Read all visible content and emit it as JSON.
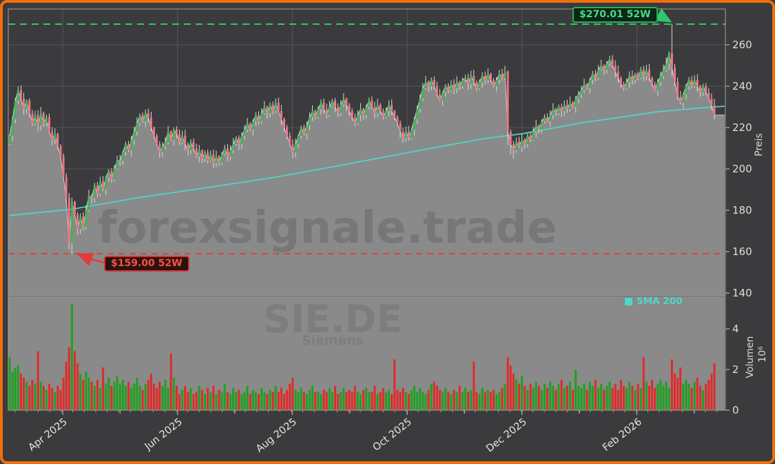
{
  "watermark": {
    "site": "forexsignale.trade",
    "symbol": "SIE.DE",
    "company": "Siemens"
  },
  "legend": {
    "sma_label": "SMA 200"
  },
  "annotations": {
    "high": {
      "label": "$270.01 52W",
      "value": 270.01
    },
    "low": {
      "label": "$159.00 52W",
      "value": 159.0
    }
  },
  "axes": {
    "price": {
      "label": "Preis",
      "ticks": [
        260,
        240,
        220,
        200,
        180,
        160,
        140
      ]
    },
    "volume": {
      "label": "Volumen",
      "unit": "10⁶",
      "ticks": [
        4,
        2,
        0
      ]
    },
    "x": {
      "tick_labels": [
        "Apr 2025",
        "Jun 2025",
        "Aug 2025",
        "Oct 2025",
        "Dec 2025",
        "Feb 2026"
      ]
    }
  },
  "chart_data": {
    "type": "candlestick",
    "symbol": "SIE.DE",
    "title_watermark": "forexsignale.trade",
    "price_ylim": [
      139,
      277.3
    ],
    "volume_ylim_millions": [
      0,
      5.6
    ],
    "high_52w": 270.01,
    "low_52w": 159.0,
    "first_open": 212,
    "closes": [
      216,
      224,
      233,
      238,
      234,
      229,
      233,
      227,
      222,
      226,
      221,
      227,
      222,
      225,
      218,
      214,
      217,
      211,
      206,
      196,
      186,
      164,
      184,
      178,
      171,
      177,
      172,
      180,
      187,
      186,
      192,
      188,
      194,
      190,
      196,
      199,
      195,
      200,
      204,
      204,
      208,
      212,
      209,
      214,
      218,
      222,
      226,
      223,
      227,
      225,
      220,
      216,
      212,
      208,
      211,
      213,
      218,
      214,
      219,
      217,
      213,
      216,
      212,
      209,
      213,
      210,
      206,
      209,
      205,
      208,
      204,
      207,
      203,
      206,
      203,
      207,
      210,
      206,
      209,
      212,
      215,
      212,
      216,
      219,
      222,
      219,
      223,
      226,
      223,
      227,
      230,
      227,
      231,
      228,
      232,
      228,
      224,
      220,
      216,
      212,
      208,
      212,
      216,
      220,
      217,
      221,
      225,
      228,
      225,
      229,
      232,
      229,
      226,
      230,
      233,
      230,
      227,
      231,
      234,
      231,
      228,
      225,
      222,
      226,
      229,
      226,
      230,
      233,
      230,
      227,
      231,
      228,
      225,
      228,
      231,
      228,
      225,
      222,
      218,
      215,
      218,
      215,
      219,
      224,
      229,
      234,
      239,
      242,
      240,
      243,
      240,
      236,
      233,
      237,
      240,
      238,
      241,
      239,
      242,
      240,
      243,
      244,
      241,
      245,
      242,
      239,
      242,
      245,
      243,
      246,
      243,
      240,
      243,
      246,
      244,
      247,
      218,
      212,
      209,
      213,
      211,
      214,
      212,
      216,
      214,
      218,
      221,
      219,
      223,
      225,
      223,
      226,
      229,
      227,
      230,
      228,
      231,
      229,
      232,
      230,
      234,
      236,
      238,
      241,
      239,
      243,
      246,
      244,
      248,
      250,
      248,
      251,
      253,
      250,
      247,
      244,
      241,
      239,
      242,
      245,
      243,
      246,
      244,
      248,
      245,
      248,
      244,
      241,
      238,
      242,
      245,
      248,
      251,
      256,
      249,
      242,
      235,
      232,
      236,
      240,
      243,
      240,
      243,
      240,
      237,
      240,
      237,
      234,
      231,
      226
    ],
    "volumes_millions": [
      2.6,
      1.9,
      2.1,
      2.2,
      1.8,
      1.6,
      1.4,
      1.2,
      1.5,
      1.3,
      2.9,
      1.4,
      1.2,
      1.0,
      1.3,
      1.1,
      0.9,
      1.2,
      1.0,
      1.6,
      2.4,
      3.1,
      5.2,
      2.9,
      2.3,
      1.8,
      1.5,
      1.9,
      1.6,
      1.4,
      1.2,
      1.5,
      1.1,
      2.1,
      1.3,
      1.6,
      1.2,
      1.4,
      1.7,
      1.3,
      1.5,
      1.2,
      1.4,
      1.1,
      1.3,
      1.6,
      1.2,
      1.0,
      1.3,
      1.5,
      1.8,
      1.3,
      1.1,
      1.4,
      1.2,
      1.5,
      1.1,
      2.8,
      1.6,
      1.2,
      0.8,
      1.0,
      1.2,
      0.9,
      1.1,
      0.8,
      0.9,
      1.2,
      1.0,
      0.8,
      1.1,
      0.9,
      1.2,
      0.8,
      1.0,
      0.9,
      1.3,
      0.9,
      0.8,
      1.1,
      0.9,
      1.0,
      0.8,
      0.9,
      1.2,
      0.8,
      1.0,
      0.9,
      0.8,
      1.1,
      0.9,
      0.8,
      1.0,
      0.9,
      1.2,
      0.9,
      1.1,
      0.8,
      1.0,
      1.3,
      1.6,
      1.0,
      0.9,
      1.1,
      0.9,
      0.8,
      1.0,
      1.2,
      0.9,
      0.9,
      0.8,
      1.0,
      0.9,
      1.1,
      0.9,
      1.2,
      0.8,
      0.9,
      1.1,
      0.9,
      1.0,
      0.9,
      1.2,
      0.9,
      0.8,
      1.0,
      1.1,
      0.9,
      0.9,
      1.2,
      0.8,
      0.9,
      1.1,
      0.9,
      1.0,
      0.8,
      2.5,
      1.0,
      0.9,
      1.1,
      0.9,
      0.8,
      1.0,
      1.2,
      0.9,
      1.1,
      0.9,
      0.8,
      1.0,
      1.3,
      1.4,
      1.2,
      1.0,
      0.9,
      1.1,
      0.9,
      0.8,
      1.0,
      0.9,
      1.2,
      0.9,
      1.1,
      0.9,
      1.0,
      2.4,
      0.9,
      0.8,
      1.1,
      0.9,
      1.0,
      0.9,
      1.0,
      0.8,
      0.9,
      1.1,
      1.3,
      2.6,
      2.2,
      1.8,
      1.5,
      1.3,
      1.7,
      1.2,
      1.0,
      1.3,
      1.1,
      1.4,
      1.2,
      1.0,
      1.3,
      1.1,
      1.4,
      1.2,
      1.0,
      1.3,
      1.5,
      1.1,
      1.2,
      1.4,
      1.0,
      2.0,
      1.2,
      1.1,
      1.3,
      1.0,
      1.4,
      1.2,
      1.5,
      1.1,
      1.3,
      1.0,
      1.2,
      1.4,
      1.1,
      1.3,
      1.0,
      1.5,
      1.2,
      1.1,
      1.4,
      1.2,
      1.0,
      1.3,
      1.1,
      2.6,
      1.4,
      1.2,
      1.5,
      1.1,
      1.3,
      1.5,
      1.2,
      1.4,
      1.1,
      2.5,
      1.8,
      1.6,
      2.1,
      1.3,
      1.5,
      1.3,
      1.1,
      1.4,
      1.6,
      1.2,
      1.0,
      1.3,
      1.5,
      1.8,
      2.3
    ],
    "special_candles": [
      {
        "i": 21,
        "low": 161
      },
      {
        "i": 22,
        "low": 159.0,
        "high": 186
      },
      {
        "i": 176,
        "low": 211.5
      },
      {
        "i": 177,
        "low": 207
      },
      {
        "i": 178,
        "low": 205
      },
      {
        "i": 234,
        "high": 270.01,
        "low": 245
      }
    ],
    "sma200": {
      "points": [
        [
          0,
          177.5
        ],
        [
          22,
          180.5
        ],
        [
          45,
          186
        ],
        [
          70,
          191
        ],
        [
          94,
          196
        ],
        [
          118,
          202
        ],
        [
          143,
          208.5
        ],
        [
          167,
          214.5
        ],
        [
          181,
          217
        ],
        [
          191,
          219.5
        ],
        [
          203,
          222.5
        ],
        [
          216,
          225
        ],
        [
          228,
          227.5
        ],
        [
          240,
          229
        ],
        [
          249,
          230
        ]
      ],
      "right_edge_value": 230.3
    },
    "colors": {
      "background": "#3b3b3d",
      "area_fill": "#8a8a8a",
      "close_line": "#d4d4d4",
      "candle_up": "#45b257",
      "candle_down": "#ee7386",
      "wick": "#d9d9d9",
      "volume_up": "#1fa11f",
      "volume_down": "#e12a2a",
      "sma": "#4fd6c7",
      "high_line": "#2ec96a",
      "low_line": "#e23b3b",
      "grid": "#545658",
      "spine": "#a0a0a0",
      "frame": "#f06e0e"
    }
  }
}
